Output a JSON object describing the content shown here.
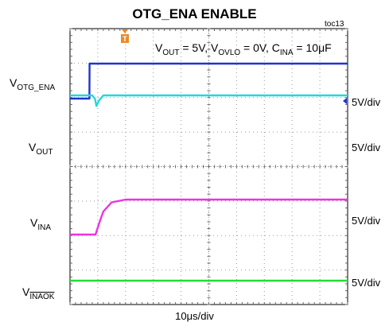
{
  "header": {
    "title": "OTG_ENA ENABLE",
    "figure_id": "toc13",
    "trigger_marker": "T"
  },
  "conditions": {
    "v1": "V",
    "v1_sub": "OUT",
    "v1_val": " = 5V, ",
    "v2": "V",
    "v2_sub": "OVLO",
    "v2_val": " = 0V, ",
    "v3": "C",
    "v3_sub": "INA",
    "v3_val": " = 10μF"
  },
  "channels": {
    "otg_ena": {
      "label": "V",
      "sub": "OTG_ENA",
      "scale": "5V/div",
      "color": "#2233cc"
    },
    "vout": {
      "label": "V",
      "sub": "OUT",
      "scale": "5V/div",
      "color": "#22d8dd"
    },
    "vina": {
      "label": "V",
      "sub": "INA",
      "scale": "5V/div",
      "color": "#ee33dd"
    },
    "vinaok": {
      "label": "V",
      "sub": "INAOK",
      "scale": "5V/div",
      "color": "#22dd33"
    }
  },
  "x_axis": {
    "scale_label": "10μs/div"
  },
  "chart_data": {
    "type": "line",
    "title": "OTG_ENA ENABLE",
    "x_unit": "μs",
    "x_per_div": 10,
    "x_divisions": 10,
    "y_divisions": 8,
    "grid": true,
    "series": [
      {
        "name": "VOTG_ENA",
        "scale": "5V/div",
        "color": "#2233cc",
        "x": [
          0,
          7,
          7.05,
          35,
          100
        ],
        "y": [
          0,
          0,
          5,
          5,
          5
        ]
      },
      {
        "name": "VOUT",
        "scale": "5V/div",
        "color": "#22d8dd",
        "x": [
          0,
          8,
          9,
          9.5,
          10.5,
          12,
          100
        ],
        "y": [
          5,
          5,
          4.5,
          3.5,
          4.3,
          5,
          5
        ]
      },
      {
        "name": "VINA",
        "scale": "5V/div",
        "color": "#ee33dd",
        "x": [
          0,
          9.2,
          10.5,
          12,
          15,
          20,
          100
        ],
        "y": [
          0,
          0,
          1.6,
          3.3,
          4.6,
          5,
          5
        ]
      },
      {
        "name": "VINAOK",
        "scale": "5V/div",
        "color": "#22dd33",
        "x": [
          0,
          100
        ],
        "y": [
          0,
          0
        ]
      }
    ]
  }
}
